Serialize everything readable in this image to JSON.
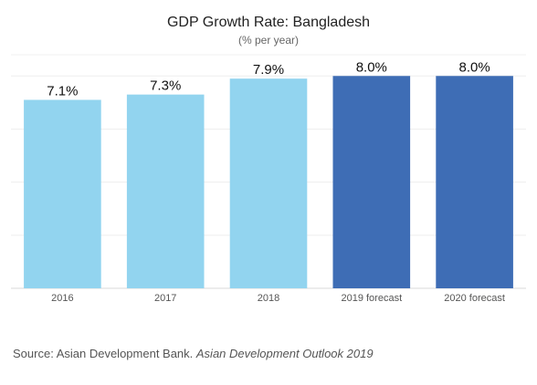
{
  "chart_data": {
    "type": "bar",
    "title": "GDP Growth Rate: Bangladesh",
    "subtitle": "(% per year)",
    "categories": [
      "2016",
      "2017",
      "2018",
      "2019 forecast",
      "2020 forecast"
    ],
    "values": [
      7.1,
      7.3,
      7.9,
      8.0,
      8.0
    ],
    "data_labels": [
      "7.1%",
      "7.3%",
      "7.9%",
      "8.0%",
      "8.0%"
    ],
    "bar_colors": [
      "#92d4ef",
      "#92d4ef",
      "#92d4ef",
      "#3e6db5",
      "#3e6db5"
    ],
    "ylim": [
      0,
      8.8
    ],
    "grid": true,
    "xlabel": "",
    "ylabel": ""
  },
  "source": {
    "prefix": "Source: Asian Development Bank. ",
    "publication": "Asian Development Outlook 2019"
  }
}
